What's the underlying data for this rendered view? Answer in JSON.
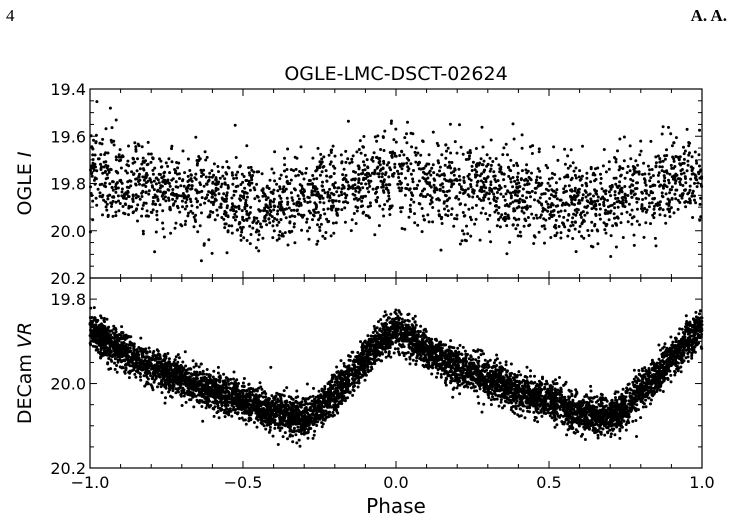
{
  "page": {
    "number": "4",
    "author": "A. A."
  },
  "chart_data": {
    "type": "scatter",
    "title": "OGLE-LMC-DSCT-02624",
    "xlabel": "Phase",
    "xlim": [
      -1.0,
      1.0
    ],
    "xticks": [
      "−1.0",
      "−0.5",
      "0.0",
      "0.5",
      "1.0"
    ],
    "xtick_values": [
      -1.0,
      -0.5,
      0.0,
      0.5,
      1.0
    ],
    "marker_color": "#000000",
    "grid": false,
    "panels": [
      {
        "ylabel_prefix": "OGLE ",
        "ylabel_italic": "I",
        "ylim": [
          19.4,
          20.2
        ],
        "y_inverted": true,
        "yticks": [
          "19.4",
          "19.6",
          "19.8",
          "20.0",
          "20.2"
        ],
        "ytick_values": [
          19.4,
          19.6,
          19.8,
          20.0,
          20.2
        ],
        "n_points_approx": 2600,
        "light_curve_shape": {
          "phase": [
            0.0,
            0.1,
            0.2,
            0.3,
            0.4,
            0.5,
            0.6,
            0.7,
            0.8,
            0.9,
            1.0
          ],
          "mean_mag": [
            19.76,
            19.79,
            19.81,
            19.83,
            19.85,
            19.86,
            19.88,
            19.86,
            19.82,
            19.79,
            19.76
          ],
          "scatter_sigma": 0.09
        }
      },
      {
        "ylabel_prefix": "DECam ",
        "ylabel_italic": "VR",
        "ylim": [
          19.75,
          20.2
        ],
        "y_inverted": true,
        "yticks": [
          "19.8",
          "20.0",
          "20.2"
        ],
        "ytick_values": [
          19.8,
          20.0,
          20.2
        ],
        "n_points_approx": 7000,
        "light_curve_shape": {
          "phase": [
            0.0,
            0.1,
            0.2,
            0.3,
            0.4,
            0.5,
            0.6,
            0.7,
            0.75,
            0.85,
            0.95,
            1.0
          ],
          "mean_mag": [
            19.87,
            19.92,
            19.96,
            19.99,
            20.02,
            20.04,
            20.07,
            20.08,
            20.06,
            19.98,
            19.9,
            19.87
          ],
          "scatter_sigma": 0.022
        }
      }
    ]
  }
}
